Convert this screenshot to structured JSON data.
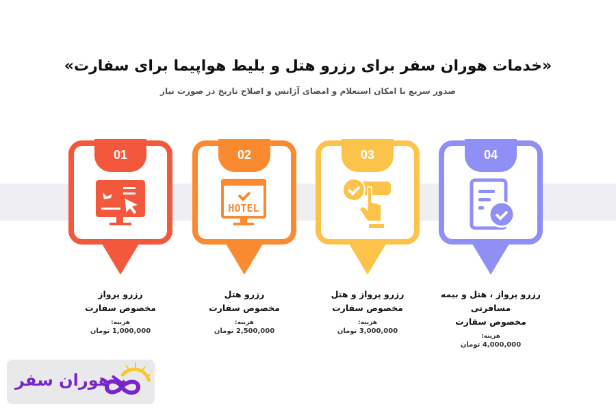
{
  "header": {
    "title": "«خدمات هوران سفر برای رزرو هتل و بلیط هواپیما برای سفارت»",
    "subtitle": "صدور سریع با امکان استعلام و امضای آژانس و اصلاح تاریخ در صورت نیاز"
  },
  "cards": [
    {
      "number": "01",
      "color": "#f4583c",
      "icon": "flight-booking-monitor-icon",
      "line1": "رزرو پرواز",
      "line2": "مخصوص سفارت",
      "cost_label": "هزینه:",
      "price": "1,000,000 تومان"
    },
    {
      "number": "02",
      "color": "#f98a30",
      "icon": "hotel-monitor-icon",
      "hotel_sign": "HOTEL",
      "line1": "رزرو هتل",
      "line2": "مخصوص سفارت",
      "cost_label": "هزینه:",
      "price": "2,500,000 تومان"
    },
    {
      "number": "03",
      "color": "#fcc34a",
      "icon": "hand-tap-check-icon",
      "line1": "رزرو پرواز و هتل",
      "line2": "مخصوص  سفارت",
      "cost_label": "هزینه:",
      "price": "3,000,000 تومان"
    },
    {
      "number": "04",
      "color": "#8f8ff5",
      "icon": "document-check-icon",
      "line1": "رزرو پرواز ، هتل و بیمه مسافرتی",
      "line2": "مخصوص سفارت",
      "cost_label": "هزینه:",
      "price": "4,000,000 تومان"
    }
  ],
  "logo": {
    "text": "هوران سفر",
    "color": "#7a25c9",
    "accent": "#f7c928"
  }
}
